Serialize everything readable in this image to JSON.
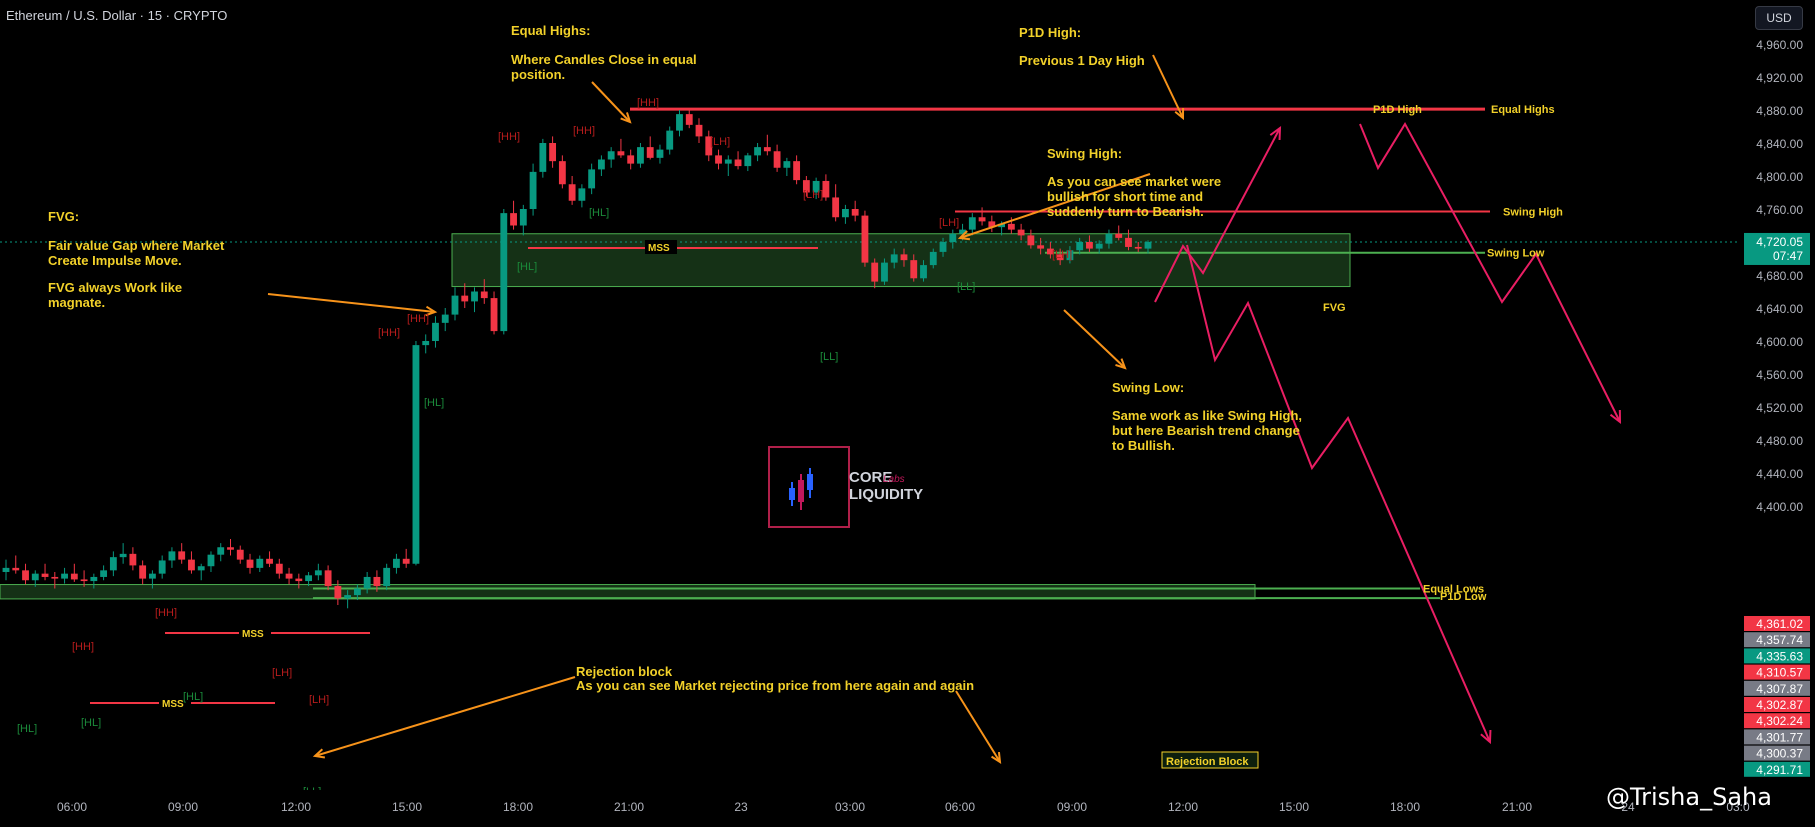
{
  "header": {
    "symbol": "Ethereum / U.S. Dollar · 15 · CRYPTO"
  },
  "currency_button": {
    "label": "USD"
  },
  "price_axis": {
    "ticks": [
      "4,960.00",
      "4,920.00",
      "4,880.00",
      "4,840.00",
      "4,800.00",
      "4,760.00",
      "4,720.00",
      "4,680.00",
      "4,640.00",
      "4,600.00",
      "4,560.00",
      "4,520.00",
      "4,480.00",
      "4,440.00",
      "4,400.00"
    ],
    "current_price": "4,720.05",
    "countdown": "07:47",
    "badges": [
      {
        "text": "4,361.02",
        "color": "#f23645"
      },
      {
        "text": "4,357.74",
        "color": "#787b86"
      },
      {
        "text": "4,335.63",
        "color": "#089981"
      },
      {
        "text": "4,310.57",
        "color": "#f23645"
      },
      {
        "text": "4,307.87",
        "color": "#787b86"
      },
      {
        "text": "4,302.87",
        "color": "#f23645"
      },
      {
        "text": "4,302.24",
        "color": "#f23645"
      },
      {
        "text": "4,301.77",
        "color": "#787b86"
      },
      {
        "text": "4,300.37",
        "color": "#787b86"
      },
      {
        "text": "4,291.71",
        "color": "#089981"
      }
    ]
  },
  "time_axis": {
    "labels": [
      "06:00",
      "09:00",
      "12:00",
      "15:00",
      "18:00",
      "21:00",
      "23",
      "03:00",
      "06:00",
      "09:00",
      "12:00",
      "15:00",
      "18:00",
      "21:00",
      "24",
      "03:0"
    ]
  },
  "annotations": {
    "equal_highs_title": "Equal Highs:",
    "equal_highs_body": "Where Candles Close in equal\nposition.",
    "p1d_high_title": "P1D High:",
    "p1d_high_body": "Previous 1 Day High",
    "fvg_title": "FVG:",
    "fvg_body": "Fair value Gap where Market\nCreate Impulse Move.",
    "fvg_body2": "FVG always Work like\nmagnate.",
    "swing_high_title": "Swing High:",
    "swing_high_body": "As you can see market were\nbullish for short time and\nsuddenly turn to Bearish.",
    "swing_low_title": "Swing Low:",
    "swing_low_body": "Same work as like Swing High,\nbut here Bearish trend change\nto Bullish.",
    "rejection_title": "Rejection block",
    "rejection_body": "As you can see Market rejecting price from here again and again"
  },
  "level_labels": {
    "p1d_high": "P1D High",
    "equal_highs": "Equal Highs",
    "swing_high": "Swing High",
    "swing_low": "Swing Low",
    "fvg": "FVG",
    "equal_lows": "Equal Lows",
    "p1d_low": "P1D Low",
    "rejection_block": "Rejection Block",
    "mss": "MSS"
  },
  "structure_tags": {
    "hh": "[HH]",
    "hl": "[HL]",
    "lh": "[LH]",
    "ll": "[LL]"
  },
  "logo": {
    "line1": "CORE",
    "line2": "LIQUIDITY",
    "badge": "Labs"
  },
  "watermark": "@Trisha_Saha",
  "colors": {
    "bull": "#089981",
    "bear": "#f23645",
    "annotation": "#f2d12a",
    "arrow_orange": "#f7931a",
    "projection": "#e91e63",
    "level_green": "#4caf50"
  },
  "chart_data": {
    "type": "candlestick",
    "title": "Ethereum / U.S. Dollar · 15 · CRYPTO",
    "ylim": [
      4270,
      4980
    ],
    "current_price": 4720.05,
    "levels": [
      {
        "name": "P1D High",
        "value": 4881
      },
      {
        "name": "Equal Highs",
        "value": 4881
      },
      {
        "name": "Swing High",
        "value": 4757
      },
      {
        "name": "Swing Low",
        "value": 4707
      },
      {
        "name": "Equal Lows",
        "value": 4300
      },
      {
        "name": "P1D Low",
        "value": 4292
      }
    ],
    "zones": [
      {
        "name": "FVG",
        "from": 4666,
        "to": 4730
      },
      {
        "name": "Rejection Block",
        "from": 4291,
        "to": 4306
      }
    ],
    "candles": [
      [
        4320,
        4335,
        4310,
        4325
      ],
      [
        4325,
        4340,
        4318,
        4322
      ],
      [
        4322,
        4330,
        4305,
        4310
      ],
      [
        4310,
        4322,
        4302,
        4318
      ],
      [
        4318,
        4330,
        4310,
        4314
      ],
      [
        4314,
        4320,
        4300,
        4312
      ],
      [
        4312,
        4325,
        4306,
        4318
      ],
      [
        4318,
        4330,
        4308,
        4311
      ],
      [
        4311,
        4322,
        4302,
        4309
      ],
      [
        4309,
        4318,
        4300,
        4314
      ],
      [
        4314,
        4328,
        4310,
        4322
      ],
      [
        4322,
        4345,
        4315,
        4338
      ],
      [
        4338,
        4355,
        4330,
        4342
      ],
      [
        4342,
        4350,
        4322,
        4328
      ],
      [
        4328,
        4334,
        4305,
        4312
      ],
      [
        4312,
        4322,
        4300,
        4318
      ],
      [
        4318,
        4340,
        4312,
        4334
      ],
      [
        4334,
        4350,
        4325,
        4345
      ],
      [
        4345,
        4355,
        4330,
        4335
      ],
      [
        4335,
        4345,
        4318,
        4322
      ],
      [
        4322,
        4330,
        4310,
        4327
      ],
      [
        4327,
        4345,
        4320,
        4341
      ],
      [
        4341,
        4355,
        4333,
        4350
      ],
      [
        4350,
        4360,
        4340,
        4347
      ],
      [
        4347,
        4352,
        4330,
        4335
      ],
      [
        4335,
        4342,
        4318,
        4325
      ],
      [
        4325,
        4340,
        4320,
        4336
      ],
      [
        4336,
        4345,
        4326,
        4330
      ],
      [
        4330,
        4336,
        4312,
        4318
      ],
      [
        4318,
        4325,
        4305,
        4312
      ],
      [
        4312,
        4318,
        4300,
        4309
      ],
      [
        4309,
        4320,
        4303,
        4316
      ],
      [
        4316,
        4330,
        4310,
        4322
      ],
      [
        4322,
        4328,
        4298,
        4303
      ],
      [
        4303,
        4310,
        4280,
        4288
      ],
      [
        4288,
        4298,
        4276,
        4292
      ],
      [
        4292,
        4305,
        4286,
        4300
      ],
      [
        4300,
        4320,
        4294,
        4314
      ],
      [
        4314,
        4322,
        4296,
        4303
      ],
      [
        4303,
        4330,
        4298,
        4325
      ],
      [
        4325,
        4342,
        4318,
        4336
      ],
      [
        4336,
        4348,
        4325,
        4330
      ],
      [
        4330,
        4600,
        4328,
        4595
      ],
      [
        4595,
        4608,
        4585,
        4600
      ],
      [
        4600,
        4630,
        4592,
        4622
      ],
      [
        4622,
        4640,
        4612,
        4632
      ],
      [
        4632,
        4665,
        4625,
        4655
      ],
      [
        4655,
        4670,
        4640,
        4648
      ],
      [
        4648,
        4665,
        4635,
        4660
      ],
      [
        4660,
        4675,
        4645,
        4652
      ],
      [
        4652,
        4660,
        4608,
        4612
      ],
      [
        4612,
        4760,
        4608,
        4755
      ],
      [
        4755,
        4770,
        4735,
        4740
      ],
      [
        4740,
        4765,
        4728,
        4760
      ],
      [
        4760,
        4815,
        4752,
        4805
      ],
      [
        4805,
        4845,
        4798,
        4840
      ],
      [
        4840,
        4848,
        4810,
        4818
      ],
      [
        4818,
        4825,
        4785,
        4790
      ],
      [
        4790,
        4800,
        4765,
        4770
      ],
      [
        4770,
        4790,
        4762,
        4785
      ],
      [
        4785,
        4815,
        4778,
        4808
      ],
      [
        4808,
        4825,
        4800,
        4820
      ],
      [
        4820,
        4835,
        4810,
        4830
      ],
      [
        4830,
        4845,
        4822,
        4825
      ],
      [
        4825,
        4832,
        4808,
        4815
      ],
      [
        4815,
        4840,
        4810,
        4835
      ],
      [
        4835,
        4848,
        4820,
        4822
      ],
      [
        4822,
        4838,
        4815,
        4832
      ],
      [
        4832,
        4860,
        4826,
        4855
      ],
      [
        4855,
        4880,
        4848,
        4875
      ],
      [
        4875,
        4882,
        4858,
        4862
      ],
      [
        4862,
        4870,
        4840,
        4848
      ],
      [
        4848,
        4855,
        4818,
        4825
      ],
      [
        4825,
        4832,
        4808,
        4815
      ],
      [
        4815,
        4825,
        4800,
        4820
      ],
      [
        4820,
        4830,
        4808,
        4812
      ],
      [
        4812,
        4828,
        4806,
        4825
      ],
      [
        4825,
        4840,
        4818,
        4835
      ],
      [
        4835,
        4850,
        4825,
        4830
      ],
      [
        4830,
        4838,
        4805,
        4810
      ],
      [
        4810,
        4822,
        4800,
        4818
      ],
      [
        4818,
        4825,
        4790,
        4795
      ],
      [
        4795,
        4800,
        4775,
        4780
      ],
      [
        4780,
        4798,
        4772,
        4794
      ],
      [
        4794,
        4802,
        4770,
        4774
      ],
      [
        4774,
        4790,
        4745,
        4750
      ],
      [
        4750,
        4765,
        4742,
        4760
      ],
      [
        4760,
        4770,
        4745,
        4752
      ],
      [
        4752,
        4758,
        4690,
        4695
      ],
      [
        4695,
        4700,
        4664,
        4672
      ],
      [
        4672,
        4700,
        4668,
        4695
      ],
      [
        4695,
        4712,
        4688,
        4705
      ],
      [
        4705,
        4712,
        4690,
        4698
      ],
      [
        4698,
        4705,
        4672,
        4676
      ],
      [
        4676,
        4698,
        4672,
        4692
      ],
      [
        4692,
        4712,
        4688,
        4708
      ],
      [
        4708,
        4725,
        4702,
        4720
      ],
      [
        4720,
        4735,
        4712,
        4730
      ],
      [
        4730,
        4742,
        4722,
        4735
      ],
      [
        4735,
        4755,
        4728,
        4750
      ],
      [
        4750,
        4762,
        4740,
        4745
      ],
      [
        4745,
        4752,
        4732,
        4738
      ],
      [
        4738,
        4745,
        4728,
        4742
      ],
      [
        4742,
        4750,
        4730,
        4735
      ],
      [
        4735,
        4742,
        4722,
        4728
      ],
      [
        4728,
        4735,
        4712,
        4716
      ],
      [
        4716,
        4725,
        4705,
        4712
      ],
      [
        4712,
        4720,
        4700,
        4705
      ],
      [
        4705,
        4712,
        4692,
        4698
      ],
      [
        4698,
        4715,
        4694,
        4710
      ],
      [
        4710,
        4725,
        4705,
        4720
      ],
      [
        4720,
        4728,
        4708,
        4712
      ],
      [
        4712,
        4722,
        4706,
        4718
      ],
      [
        4718,
        4735,
        4712,
        4730
      ],
      [
        4730,
        4740,
        4722,
        4725
      ],
      [
        4725,
        4735,
        4710,
        4714
      ],
      [
        4714,
        4720,
        4708,
        4712
      ],
      [
        4712,
        4722,
        4706,
        4720
      ]
    ]
  }
}
